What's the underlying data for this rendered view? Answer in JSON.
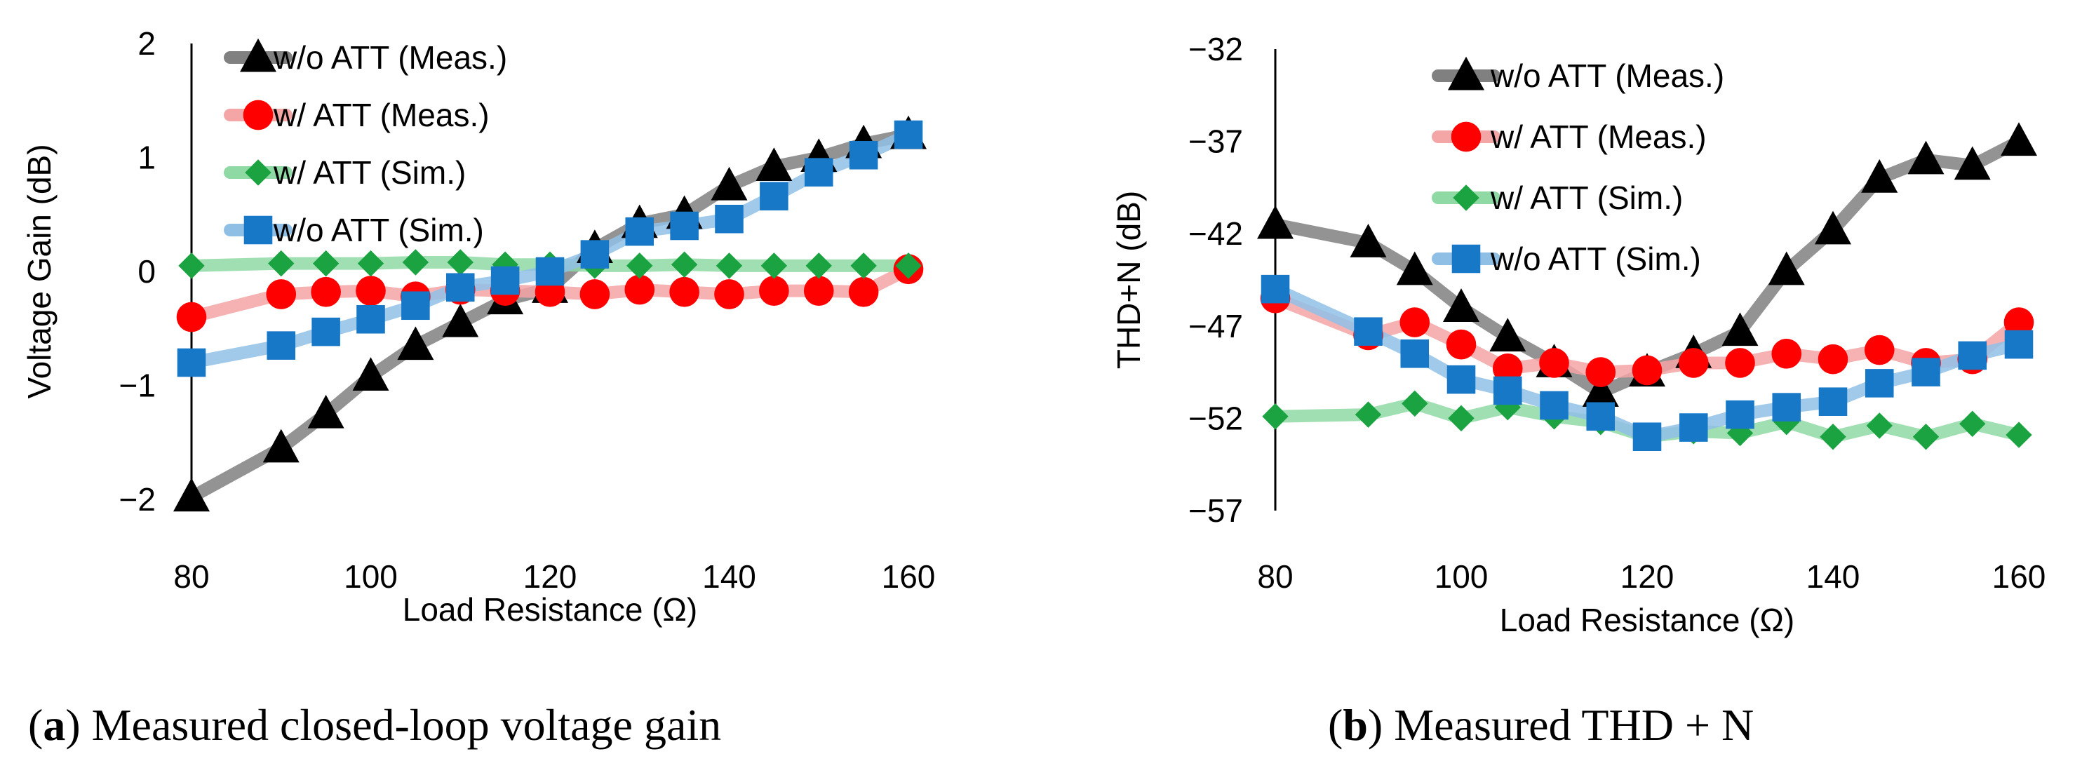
{
  "chart_data": [
    {
      "type": "line",
      "title": "",
      "caption_letter": "a",
      "caption_text": " Measured closed-loop voltage gain",
      "xlabel": "Load Resistance (Ω)",
      "ylabel": "Voltage Gain (dB)",
      "xlim": [
        80,
        160
      ],
      "ylim": [
        -2,
        2
      ],
      "xticks": [
        80,
        100,
        120,
        140,
        160
      ],
      "xtick_labels": [
        "80",
        "100",
        "120",
        "140",
        "160"
      ],
      "yticks": [
        2,
        1,
        0,
        -1,
        -2
      ],
      "ytick_labels": [
        "2",
        "1",
        "0",
        "−1",
        "−2"
      ],
      "legend_position": "top-left",
      "x": [
        80,
        90,
        95,
        100,
        105,
        110,
        115,
        120,
        125,
        130,
        135,
        140,
        145,
        150,
        155,
        160
      ],
      "series": [
        {
          "name": "w/o ATT (Meas.)",
          "marker": "triangle",
          "color": "#000000",
          "line_color": "#808080",
          "values": [
            -1.98,
            -1.55,
            -1.25,
            -0.92,
            -0.65,
            -0.45,
            -0.25,
            -0.15,
            0.2,
            0.42,
            0.5,
            0.75,
            0.92,
            1.0,
            1.12,
            1.2
          ]
        },
        {
          "name": "w/ ATT (Meas.)",
          "marker": "circle",
          "color": "#ff0000",
          "line_color": "#f4a5a5",
          "values": [
            -0.4,
            -0.2,
            -0.18,
            -0.17,
            -0.22,
            -0.16,
            -0.17,
            -0.18,
            -0.2,
            -0.16,
            -0.18,
            -0.2,
            -0.17,
            -0.17,
            -0.18,
            0.02
          ]
        },
        {
          "name": "w/ ATT (Sim.)",
          "marker": "diamond",
          "color": "#1aa340",
          "line_color": "#8fd9a4",
          "values": [
            0.05,
            0.07,
            0.07,
            0.07,
            0.08,
            0.08,
            0.06,
            0.06,
            0.05,
            0.05,
            0.06,
            0.05,
            0.05,
            0.05,
            0.05,
            0.05
          ]
        },
        {
          "name": "w/o ATT (Sim.)",
          "marker": "square",
          "color": "#1878c8",
          "line_color": "#90bfe6",
          "values": [
            -0.8,
            -0.65,
            -0.53,
            -0.42,
            -0.3,
            -0.14,
            -0.08,
            0.0,
            0.15,
            0.35,
            0.4,
            0.46,
            0.66,
            0.87,
            1.02,
            1.2
          ]
        }
      ]
    },
    {
      "type": "line",
      "title": "",
      "caption_letter": "b",
      "caption_text": " Measured THD + N",
      "xlabel": "Load Resistance (Ω)",
      "ylabel": "THD+N (dB)",
      "xlim": [
        80,
        160
      ],
      "ylim": [
        -57,
        -32
      ],
      "xticks": [
        80,
        100,
        120,
        140,
        160
      ],
      "xtick_labels": [
        "80",
        "100",
        "120",
        "140",
        "160"
      ],
      "yticks": [
        -32,
        -37,
        -42,
        -47,
        -52,
        -57
      ],
      "ytick_labels": [
        "−32",
        "−37",
        "−42",
        "−47",
        "−52",
        "−57"
      ],
      "legend_position": "top-center",
      "x": [
        80,
        90,
        95,
        100,
        105,
        110,
        115,
        120,
        125,
        130,
        135,
        140,
        145,
        150,
        155,
        160
      ],
      "series": [
        {
          "name": "w/o ATT (Meas.)",
          "marker": "triangle",
          "color": "#000000",
          "line_color": "#808080",
          "values": [
            -41.5,
            -42.5,
            -44,
            -46,
            -47.6,
            -49,
            -50.6,
            -49.5,
            -48.5,
            -47.3,
            -44,
            -41.8,
            -39,
            -38,
            -38.3,
            -37
          ]
        },
        {
          "name": "w/ ATT (Meas.)",
          "marker": "circle",
          "color": "#ff0000",
          "line_color": "#f4a5a5",
          "values": [
            -45.5,
            -47.5,
            -46.8,
            -48,
            -49.3,
            -49,
            -49.5,
            -49.4,
            -49,
            -49,
            -48.5,
            -48.8,
            -48.3,
            -49,
            -48.8,
            -46.8
          ]
        },
        {
          "name": "w/ ATT (Sim.)",
          "marker": "diamond",
          "color": "#1aa340",
          "line_color": "#8fd9a4",
          "values": [
            -51.9,
            -51.8,
            -51.2,
            -52,
            -51.4,
            -51.9,
            -52.2,
            -53,
            -52.7,
            -52.8,
            -52.2,
            -53,
            -52.4,
            -53,
            -52.3,
            -52.9
          ]
        },
        {
          "name": "w/o ATT (Sim.)",
          "marker": "square",
          "color": "#1878c8",
          "line_color": "#90bfe6",
          "values": [
            -45,
            -47.3,
            -48.5,
            -49.9,
            -50.5,
            -51.3,
            -51.9,
            -53,
            -52.5,
            -51.8,
            -51.4,
            -51.1,
            -50.1,
            -49.5,
            -48.6,
            -48
          ]
        }
      ]
    }
  ]
}
